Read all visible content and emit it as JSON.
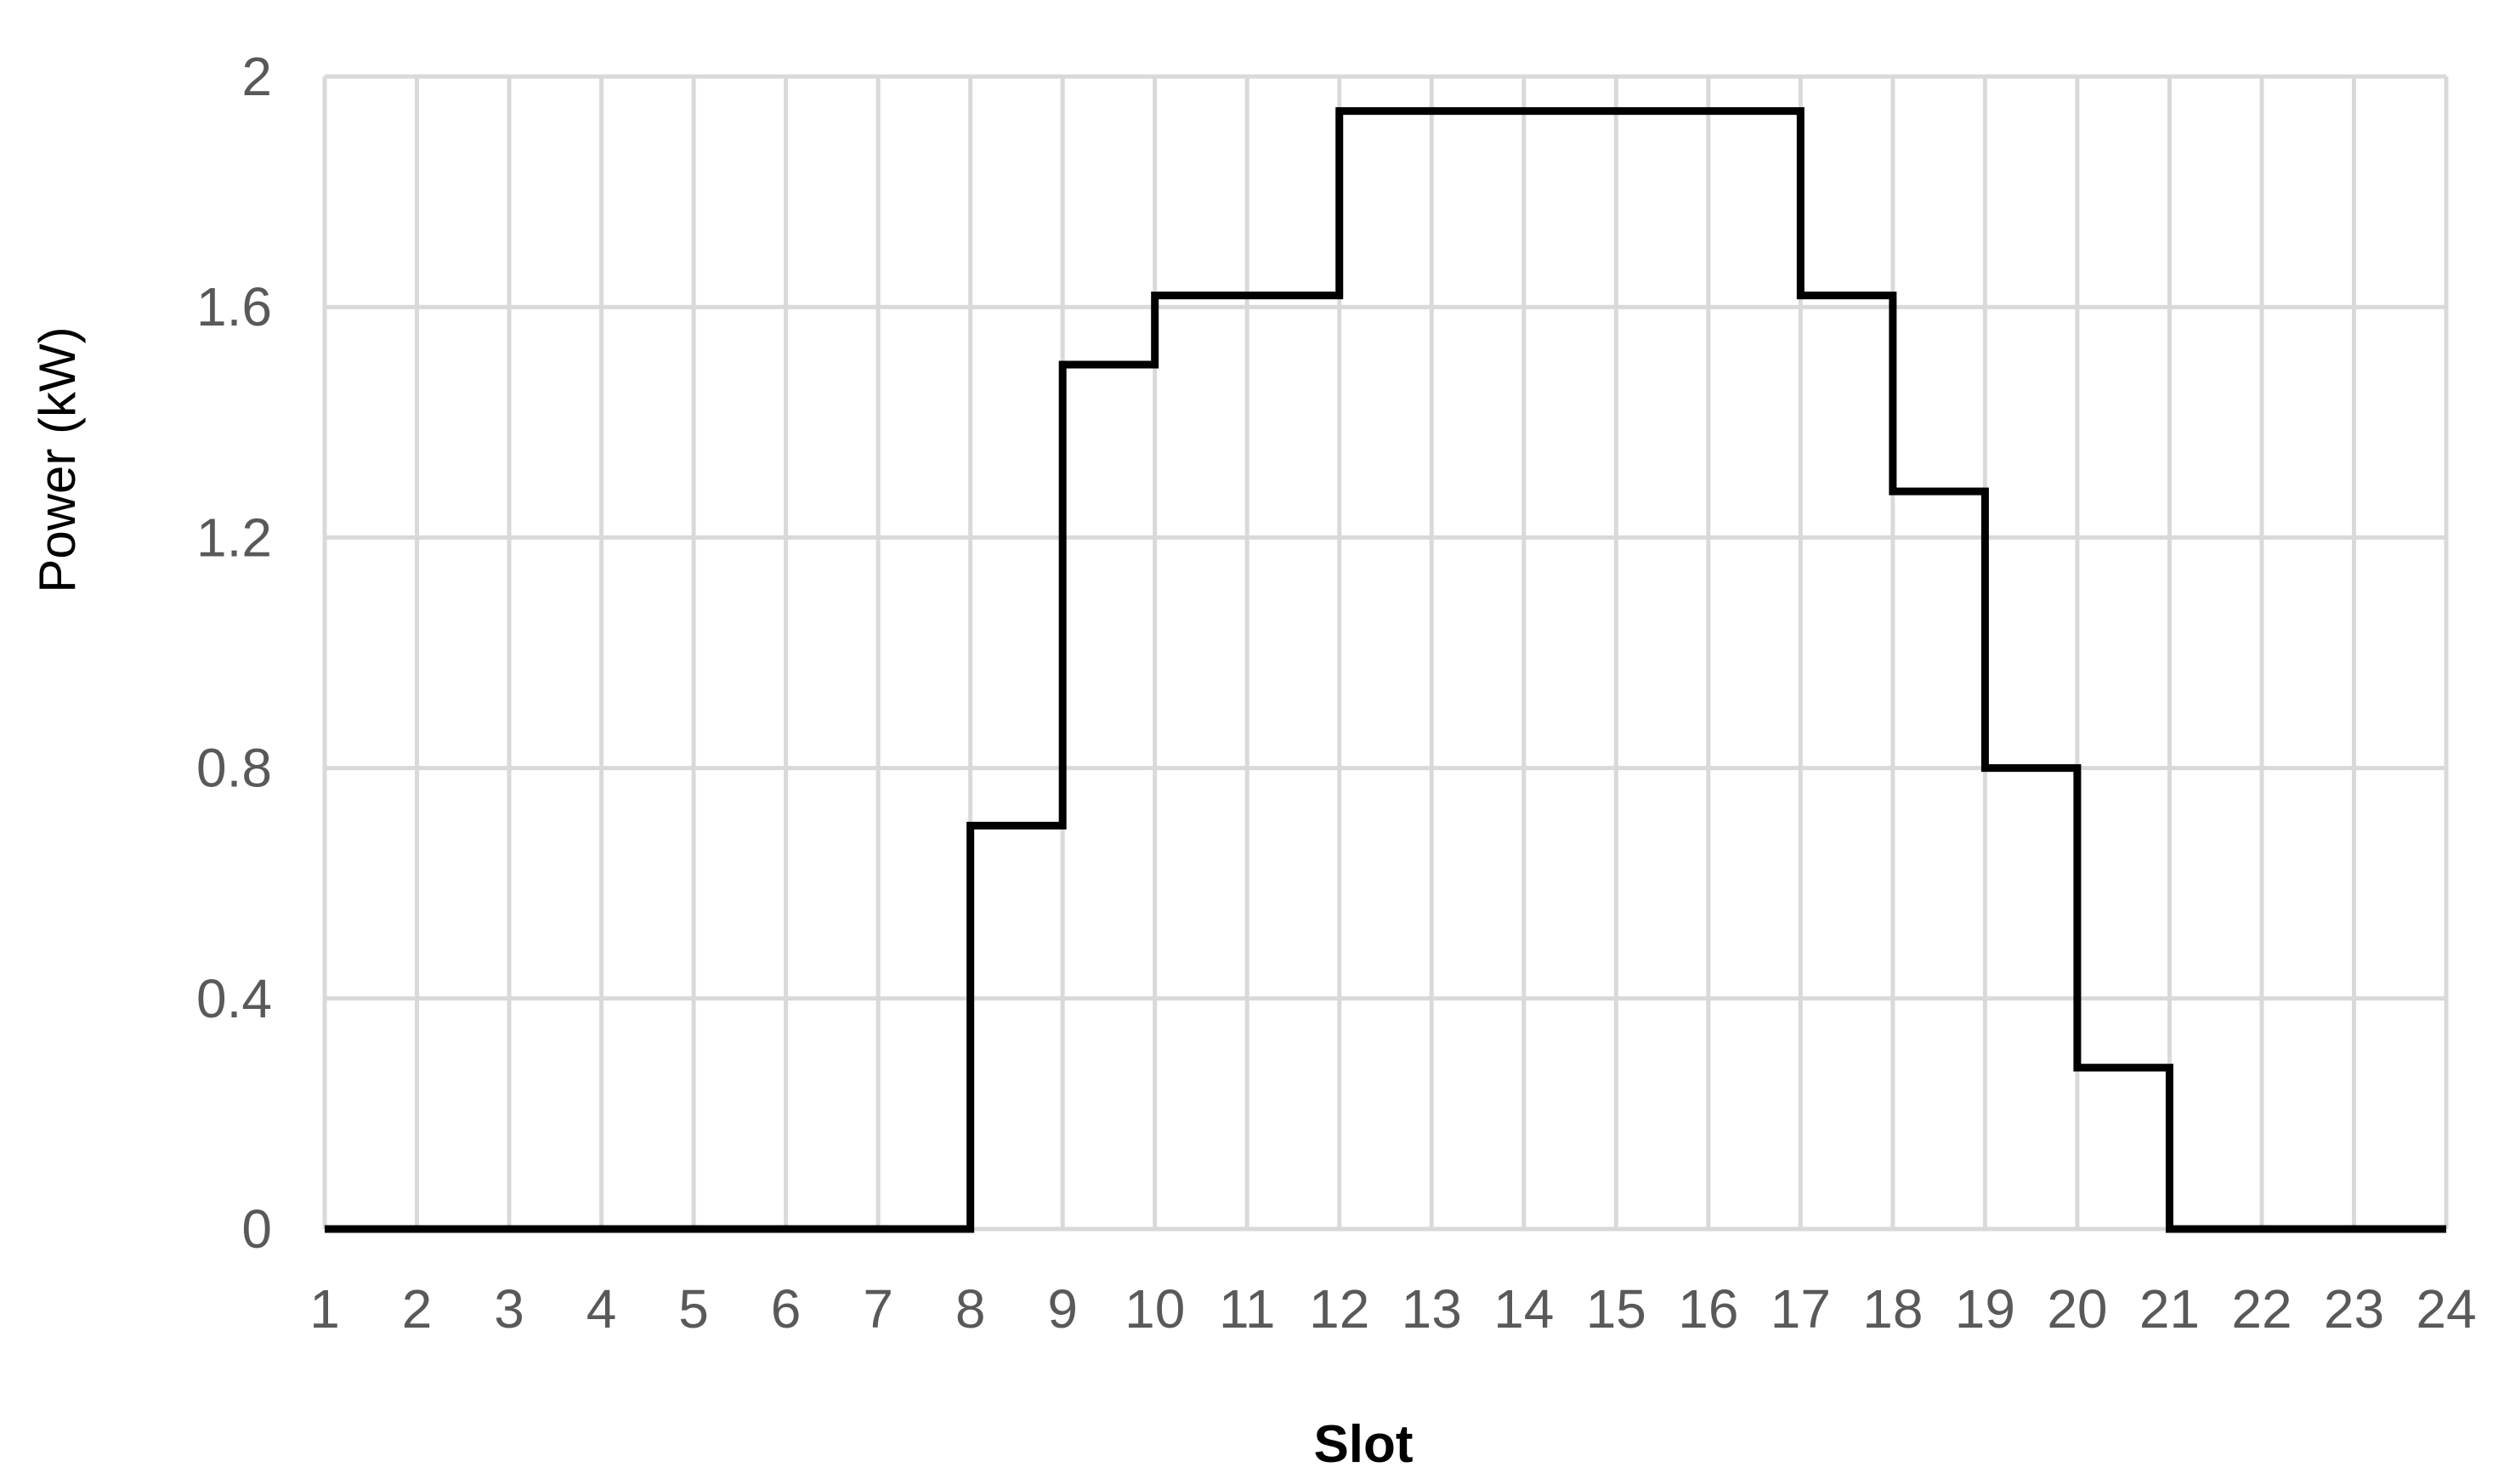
{
  "chart_data": {
    "type": "line",
    "step": "post",
    "title": "",
    "xlabel": "Slot",
    "ylabel": "Power (kW)",
    "x_ticks": [
      1,
      2,
      3,
      4,
      5,
      6,
      7,
      8,
      9,
      10,
      11,
      12,
      13,
      14,
      15,
      16,
      17,
      18,
      19,
      20,
      21,
      22,
      23,
      24
    ],
    "y_ticks": [
      "0",
      "0.4",
      "0.8",
      "1.2",
      "1.6",
      "2"
    ],
    "xlim": [
      1,
      24
    ],
    "ylim": [
      0,
      2
    ],
    "grid": true,
    "series": [
      {
        "x": [
          1,
          2,
          3,
          4,
          5,
          6,
          7,
          8,
          9,
          10,
          11,
          12,
          13,
          14,
          15,
          16,
          17,
          18,
          19,
          20,
          21,
          22,
          23,
          24
        ],
        "y": [
          0,
          0,
          0,
          0,
          0,
          0,
          0,
          0.7,
          1.5,
          1.62,
          1.62,
          1.94,
          1.94,
          1.94,
          1.94,
          1.94,
          1.62,
          1.28,
          0.8,
          0.28,
          0,
          0,
          0,
          0
        ],
        "color": "#000000"
      }
    ],
    "colors": {
      "grid": "#d9d9d9",
      "line": "#000000",
      "tick_text": "#595959"
    }
  }
}
